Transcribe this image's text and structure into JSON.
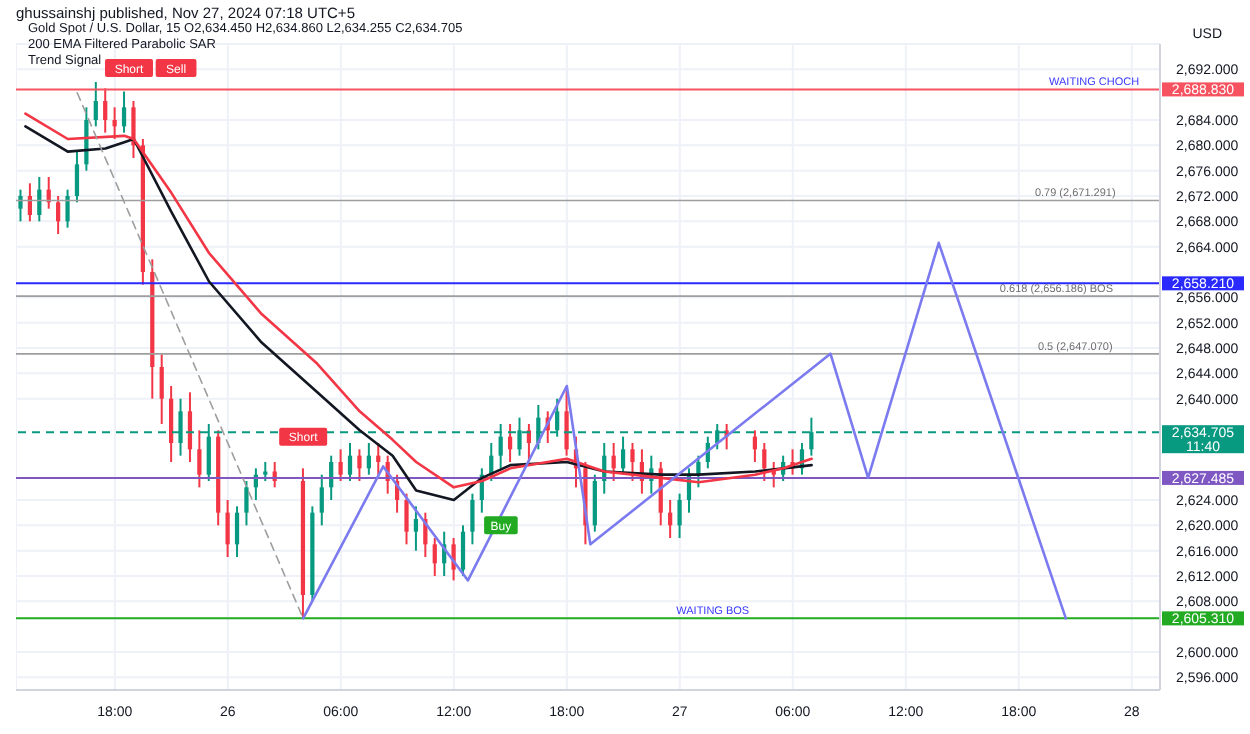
{
  "chart_data": {
    "type": "candlestick",
    "title": "Gold Spot / U.S. Dollar, 15  O2,634.450 H2,634.860 L2,634.255 C2,634.705",
    "subtitle": "200 EMA Filtered Parabolic SAR",
    "annotations": [
      "ghussainshj published, Nov 27, 2024 07:18 UTC+5",
      "Trend Signal",
      "USD",
      {
        "text": "Short",
        "x": "2024-11-25T18:45",
        "y": 2692.2
      },
      {
        "text": "Sell",
        "x": "2024-11-25T21:15",
        "y": 2692.2
      },
      {
        "text": "Short",
        "x": "2024-11-26T04:00",
        "y": 2634
      },
      {
        "text": "Buy",
        "x": "2024-11-26T14:30",
        "y": 2620
      },
      {
        "text": "WAITING CHOCH",
        "x": "2024-11-27T22:00",
        "y": 2688.83
      },
      {
        "text": "0.79 (2,671.291)",
        "x": "2024-11-27T21:00",
        "y": 2671.291
      },
      {
        "text": "0.618 (2,656.186) BOS",
        "x": "2024-11-27T20:00",
        "y": 2656.186
      },
      {
        "text": "0.5 (2,647.070)",
        "x": "2024-11-27T21:00",
        "y": 2647.07
      },
      {
        "text": "WAITING BOS",
        "x": "2024-11-27T01:45",
        "y": 2605.31
      }
    ],
    "x": [
      "2024-11-25T13:00",
      "2024-11-25T13:30",
      "2024-11-25T14:00",
      "2024-11-25T14:30",
      "2024-11-25T15:00",
      "2024-11-25T15:30",
      "2024-11-25T16:00",
      "2024-11-25T16:30",
      "2024-11-25T17:00",
      "2024-11-25T17:30",
      "2024-11-25T18:00",
      "2024-11-25T18:30",
      "2024-11-25T19:00",
      "2024-11-25T19:30",
      "2024-11-25T20:00",
      "2024-11-25T20:30",
      "2024-11-25T21:00",
      "2024-11-25T21:30",
      "2024-11-25T22:00",
      "2024-11-25T22:30",
      "2024-11-25T23:00",
      "2024-11-25T23:30",
      "2024-11-26T00:00",
      "2024-11-26T00:30",
      "2024-11-26T01:00",
      "2024-11-26T01:30",
      "2024-11-26T02:00",
      "2024-11-26T02:30",
      "2024-11-26T04:00",
      "2024-11-26T04:30",
      "2024-11-26T05:00",
      "2024-11-26T05:30",
      "2024-11-26T06:00",
      "2024-11-26T06:30",
      "2024-11-26T07:00",
      "2024-11-26T07:30",
      "2024-11-26T08:00",
      "2024-11-26T08:30",
      "2024-11-26T09:00",
      "2024-11-26T09:30",
      "2024-11-26T10:00",
      "2024-11-26T10:30",
      "2024-11-26T11:00",
      "2024-11-26T11:30",
      "2024-11-26T12:00",
      "2024-11-26T12:30",
      "2024-11-26T13:00",
      "2024-11-26T13:30",
      "2024-11-26T14:00",
      "2024-11-26T14:30",
      "2024-11-26T15:00",
      "2024-11-26T15:30",
      "2024-11-26T16:00",
      "2024-11-26T16:30",
      "2024-11-26T17:00",
      "2024-11-26T17:30",
      "2024-11-26T18:00",
      "2024-11-26T18:30",
      "2024-11-26T19:00",
      "2024-11-26T19:30",
      "2024-11-26T20:00",
      "2024-11-26T20:30",
      "2024-11-26T21:00",
      "2024-11-26T21:30",
      "2024-11-26T22:00",
      "2024-11-26T22:30",
      "2024-11-26T23:00",
      "2024-11-26T23:30",
      "2024-11-27T00:00",
      "2024-11-27T00:30",
      "2024-11-27T01:00",
      "2024-11-27T01:30",
      "2024-11-27T02:00",
      "2024-11-27T02:30",
      "2024-11-27T04:00",
      "2024-11-27T04:30",
      "2024-11-27T05:00",
      "2024-11-27T05:30",
      "2024-11-27T06:00",
      "2024-11-27T06:30",
      "2024-11-27T07:00"
    ],
    "ohlc": [
      [
        2670,
        2673,
        2668,
        2672
      ],
      [
        2672,
        2674,
        2668,
        2669
      ],
      [
        2669,
        2675,
        2668,
        2673
      ],
      [
        2673,
        2675,
        2670,
        2671
      ],
      [
        2671,
        2672,
        2666,
        2668
      ],
      [
        2668,
        2673,
        2667,
        2672
      ],
      [
        2672,
        2679,
        2671,
        2677
      ],
      [
        2677,
        2686,
        2676,
        2684
      ],
      [
        2684,
        2690,
        2683,
        2687
      ],
      [
        2687,
        2689,
        2682,
        2684
      ],
      [
        2684,
        2686,
        2681,
        2683
      ],
      [
        2683,
        2688.5,
        2682,
        2686
      ],
      [
        2686,
        2687,
        2678,
        2680
      ],
      [
        2680,
        2681,
        2658,
        2660
      ],
      [
        2660,
        2662,
        2640,
        2645
      ],
      [
        2645,
        2647,
        2636,
        2640
      ],
      [
        2640,
        2642,
        2630,
        2633
      ],
      [
        2633,
        2640,
        2631,
        2638
      ],
      [
        2638,
        2641,
        2630,
        2632
      ],
      [
        2632,
        2635,
        2626,
        2628
      ],
      [
        2628,
        2636,
        2627,
        2634
      ],
      [
        2634,
        2635,
        2620,
        2622
      ],
      [
        2622,
        2624,
        2615,
        2617
      ],
      [
        2617,
        2623,
        2615,
        2622
      ],
      [
        2622,
        2627,
        2620,
        2626
      ],
      [
        2626,
        2629,
        2624,
        2628
      ],
      [
        2628,
        2630,
        2627,
        2628.5
      ],
      [
        2628.5,
        2630,
        2626,
        2627
      ],
      [
        2627,
        2629,
        2605.3,
        2609
      ],
      [
        2609,
        2623,
        2608,
        2622
      ],
      [
        2622,
        2628,
        2620,
        2626
      ],
      [
        2626,
        2631,
        2624,
        2630
      ],
      [
        2630,
        2632,
        2627,
        2628
      ],
      [
        2628,
        2633,
        2627,
        2631
      ],
      [
        2631,
        2632,
        2627,
        2629
      ],
      [
        2629,
        2633,
        2628,
        2631
      ],
      [
        2631,
        2633,
        2628,
        2630
      ],
      [
        2630,
        2631,
        2625,
        2627
      ],
      [
        2627,
        2628,
        2622,
        2624
      ],
      [
        2624,
        2625,
        2617,
        2619
      ],
      [
        2619,
        2623,
        2616,
        2621
      ],
      [
        2621,
        2622,
        2615,
        2617
      ],
      [
        2617,
        2618,
        2612,
        2614
      ],
      [
        2614,
        2619,
        2612,
        2617
      ],
      [
        2617,
        2618,
        2611.3,
        2613
      ],
      [
        2613,
        2620,
        2612,
        2619
      ],
      [
        2619,
        2625,
        2617,
        2624
      ],
      [
        2624,
        2629,
        2622,
        2628
      ],
      [
        2628,
        2633,
        2627,
        2631
      ],
      [
        2631,
        2636,
        2629,
        2634
      ],
      [
        2634,
        2636,
        2630,
        2632
      ],
      [
        2632,
        2637,
        2631,
        2635
      ],
      [
        2635,
        2636,
        2630,
        2633
      ],
      [
        2633,
        2639,
        2632,
        2637
      ],
      [
        2637,
        2638,
        2633,
        2635
      ],
      [
        2635,
        2640,
        2634,
        2638
      ],
      [
        2638,
        2642,
        2631,
        2632
      ],
      [
        2632,
        2634,
        2626,
        2629
      ],
      [
        2629,
        2630,
        2617,
        2620
      ],
      [
        2620,
        2628,
        2619,
        2627
      ],
      [
        2627,
        2633,
        2625,
        2631
      ],
      [
        2631,
        2633,
        2627,
        2629
      ],
      [
        2629,
        2634,
        2628,
        2632
      ],
      [
        2632,
        2633,
        2627,
        2630
      ],
      [
        2630,
        2632,
        2625,
        2627
      ],
      [
        2627,
        2631,
        2625,
        2629
      ],
      [
        2629,
        2630,
        2620,
        2622
      ],
      [
        2622,
        2624,
        2618,
        2620
      ],
      [
        2620,
        2625,
        2618,
        2624
      ],
      [
        2624,
        2629,
        2622,
        2628
      ],
      [
        2628,
        2631,
        2626,
        2630
      ],
      [
        2630,
        2634,
        2629,
        2633
      ],
      [
        2633,
        2636,
        2632,
        2635
      ],
      [
        2635,
        2636,
        2632,
        2634
      ],
      [
        2634,
        2635,
        2630,
        2632
      ],
      [
        2632,
        2633,
        2627,
        2629
      ],
      [
        2629,
        2630,
        2626,
        2628
      ],
      [
        2628,
        2631,
        2627,
        2630
      ],
      [
        2630,
        2632,
        2628,
        2629
      ],
      [
        2629,
        2633,
        2628,
        2632
      ],
      [
        2632,
        2637,
        2631,
        2634.705
      ]
    ],
    "series": [
      {
        "type": "line",
        "color": "#131722",
        "x": [
          "2024-11-25T13:15",
          "2024-11-25T15:30",
          "2024-11-25T17:30",
          "2024-11-25T18:30",
          "2024-11-25T19:00",
          "2024-11-25T21:00",
          "2024-11-25T23:00",
          "2024-11-26T01:45",
          "2024-11-26T04:45",
          "2024-11-26T07:00",
          "2024-11-26T08:45",
          "2024-11-26T10:00",
          "2024-11-26T12:00",
          "2024-11-26T13:30",
          "2024-11-26T15:00",
          "2024-11-26T18:00",
          "2024-11-26T20:00",
          "2024-11-26T23:00",
          "2024-11-27T01:00",
          "2024-11-27T04:00",
          "2024-11-27T05:30",
          "2024-11-27T07:00"
        ],
        "values": [
          2683,
          2679,
          2679.5,
          2680.5,
          2681,
          2669.5,
          2658.5,
          2649,
          2641,
          2635,
          2631,
          2625.5,
          2624,
          2627.5,
          2629.5,
          2630,
          2628.5,
          2628,
          2628,
          2628.5,
          2629,
          2629.5
        ]
      },
      {
        "type": "line",
        "color": "#f23645",
        "x": [
          "2024-11-25T13:15",
          "2024-11-25T15:30",
          "2024-11-25T18:30",
          "2024-11-25T19:00",
          "2024-11-25T21:00",
          "2024-11-25T23:00",
          "2024-11-26T01:45",
          "2024-11-26T04:45",
          "2024-11-26T07:00",
          "2024-11-26T08:45",
          "2024-11-26T10:00",
          "2024-11-26T12:00",
          "2024-11-26T13:30",
          "2024-11-26T15:00",
          "2024-11-26T18:00",
          "2024-11-26T20:00",
          "2024-11-26T23:00",
          "2024-11-27T01:00",
          "2024-11-27T04:00",
          "2024-11-27T05:30",
          "2024-11-27T07:00"
        ],
        "values": [
          2685,
          2681,
          2681.5,
          2681,
          2672.5,
          2663,
          2653.5,
          2645.5,
          2638,
          2633.5,
          2630,
          2626,
          2627,
          2629,
          2630.5,
          2628.5,
          2627.5,
          2626.8,
          2628,
          2629,
          2630.5
        ]
      },
      {
        "type": "line",
        "color": "#7b7bef",
        "x": [
          "2024-11-26T04:00",
          "2024-11-26T08:15",
          "2024-11-26T12:45",
          "2024-11-26T18:00",
          "2024-11-26T19:15",
          "2024-11-27T08:00",
          "2024-11-27T10:00",
          "2024-11-27T13:45",
          "2024-11-27T20:30"
        ],
        "values": [
          2605.3,
          2629.3,
          2611.3,
          2642,
          2617,
          2647.1,
          2627.5,
          2664.6,
          2605.3
        ]
      },
      {
        "type": "line",
        "color": "#9e9e9e",
        "line_style": "dashed",
        "x": [
          "2024-11-25T16:00",
          "2024-11-26T04:00"
        ],
        "values": [
          2688.3,
          2605.3
        ]
      }
    ],
    "ref_lines": [
      {
        "axis": "y",
        "value": 2688.83,
        "label": "2,688.830",
        "color": "#f7525f"
      },
      {
        "axis": "y",
        "value": 2671.291,
        "label": null,
        "color": "#9e9e9e"
      },
      {
        "axis": "y",
        "value": 2658.21,
        "label": "2,658.210",
        "color": "#2a2aff"
      },
      {
        "axis": "y",
        "value": 2656.186,
        "label": null,
        "color": "#9e9e9e"
      },
      {
        "axis": "y",
        "value": 2647.07,
        "label": null,
        "color": "#9e9e9e"
      },
      {
        "axis": "y",
        "value": 2634.705,
        "label": "2,634.705\n11:40",
        "color": "#089981",
        "line_style": "dashed"
      },
      {
        "axis": "y",
        "value": 2627.485,
        "label": "2,627.485",
        "color": "#7e57c2"
      },
      {
        "axis": "y",
        "value": 2605.31,
        "label": "2,605.310",
        "color": "#22ab22"
      }
    ],
    "xlim": [
      "2024-11-25T12:45",
      "2024-11-28T01:30"
    ],
    "xticks": [
      {
        "value": "2024-11-25T18:00",
        "label": "18:00"
      },
      {
        "value": "2024-11-26T00:00",
        "label": "26"
      },
      {
        "value": "2024-11-26T06:00",
        "label": "06:00"
      },
      {
        "value": "2024-11-26T12:00",
        "label": "12:00"
      },
      {
        "value": "2024-11-26T18:00",
        "label": "18:00"
      },
      {
        "value": "2024-11-27T00:00",
        "label": "27"
      },
      {
        "value": "2024-11-27T06:00",
        "label": "06:00"
      },
      {
        "value": "2024-11-27T12:00",
        "label": "12:00"
      },
      {
        "value": "2024-11-27T18:00",
        "label": "18:00"
      },
      {
        "value": "2024-11-28T00:00",
        "label": "28"
      }
    ],
    "ylim": [
      2594,
      2696
    ],
    "yticks": [
      {
        "value": 2596,
        "label": "2,596.000"
      },
      {
        "value": 2600,
        "label": "2,600.000"
      },
      {
        "value": 2608,
        "label": "2,608.000"
      },
      {
        "value": 2612,
        "label": "2,612.000"
      },
      {
        "value": 2616,
        "label": "2,616.000"
      },
      {
        "value": 2620,
        "label": "2,620.000"
      },
      {
        "value": 2624,
        "label": "2,624.000"
      },
      {
        "value": 2640,
        "label": "2,640.000"
      },
      {
        "value": 2644,
        "label": "2,644.000"
      },
      {
        "value": 2648,
        "label": "2,648.000"
      },
      {
        "value": 2652,
        "label": "2,652.000"
      },
      {
        "value": 2656,
        "label": "2,656.000"
      },
      {
        "value": 2664,
        "label": "2,664.000"
      },
      {
        "value": 2668,
        "label": "2,668.000"
      },
      {
        "value": 2672,
        "label": "2,672.000"
      },
      {
        "value": 2676,
        "label": "2,676.000"
      },
      {
        "value": 2680,
        "label": "2,680.000"
      },
      {
        "value": 2684,
        "label": "2,684.000"
      },
      {
        "value": 2692,
        "label": "2,692.000"
      }
    ],
    "grid": true,
    "marker": "none"
  }
}
